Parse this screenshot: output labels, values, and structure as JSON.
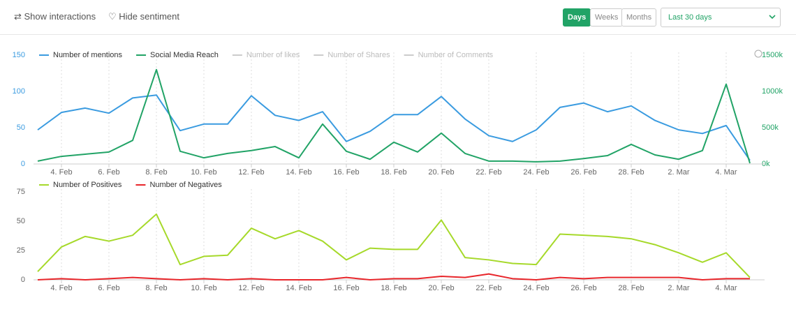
{
  "toolbar": {
    "show_interactions": "Show interactions",
    "hide_sentiment": "Hide sentiment",
    "periods": [
      "Days",
      "Weeks",
      "Months"
    ],
    "active_period": 0,
    "range_select": "Last 30 days"
  },
  "chart_data": [
    {
      "type": "line",
      "categories": [
        null,
        "4. Feb",
        null,
        "6. Feb",
        null,
        "8. Feb",
        null,
        "10. Feb",
        null,
        "12. Feb",
        null,
        "14. Feb",
        null,
        "16. Feb",
        null,
        "18. Feb",
        null,
        "20. Feb",
        null,
        "22. Feb",
        null,
        "24. Feb",
        null,
        "26. Feb",
        null,
        "28. Feb",
        null,
        "2. Mar",
        null,
        "4. Mar",
        null
      ],
      "series": [
        {
          "name": "Number of mentions",
          "color": "#3a9be0",
          "values": [
            47,
            71,
            77,
            70,
            91,
            95,
            46,
            55,
            55,
            94,
            67,
            60,
            72,
            31,
            45,
            68,
            68,
            93,
            62,
            39,
            31,
            47,
            78,
            84,
            72,
            80,
            60,
            47,
            42,
            53,
            5
          ]
        },
        {
          "name": "Social Media Reach",
          "color": "#21a366",
          "axis": "y2",
          "values": [
            40000,
            105000,
            135000,
            165000,
            325000,
            1300000,
            175000,
            85000,
            145000,
            185000,
            240000,
            85000,
            550000,
            175000,
            65000,
            300000,
            165000,
            425000,
            145000,
            40000,
            40000,
            30000,
            40000,
            75000,
            115000,
            270000,
            125000,
            65000,
            185000,
            1100000,
            10000
          ]
        }
      ],
      "inactive_series": [
        "Number of likes",
        "Number of Shares",
        "Number of Comments"
      ],
      "ylim": [
        0,
        150
      ],
      "yticks": [
        0,
        50,
        100,
        150
      ],
      "y2lim": [
        0,
        1500000
      ],
      "y2ticks": [
        {
          "value": 0,
          "label": "0k"
        },
        {
          "value": 500000,
          "label": "500k"
        },
        {
          "value": 1000000,
          "label": "1000k"
        },
        {
          "value": 1500000,
          "label": "1500k"
        }
      ],
      "grid": "x"
    },
    {
      "type": "line",
      "categories": [
        null,
        "4. Feb",
        null,
        "6. Feb",
        null,
        "8. Feb",
        null,
        "10. Feb",
        null,
        "12. Feb",
        null,
        "14. Feb",
        null,
        "16. Feb",
        null,
        "18. Feb",
        null,
        "20. Feb",
        null,
        "22. Feb",
        null,
        "24. Feb",
        null,
        "26. Feb",
        null,
        "28. Feb",
        null,
        "2. Mar",
        null,
        "4. Mar",
        null
      ],
      "series": [
        {
          "name": "Number of Positives",
          "color": "#a6d92a",
          "values": [
            7,
            28,
            37,
            33,
            38,
            56,
            13,
            20,
            21,
            44,
            35,
            42,
            33,
            17,
            27,
            26,
            26,
            51,
            19,
            17,
            14,
            13,
            39,
            38,
            37,
            35,
            30,
            23,
            15,
            23,
            2
          ]
        },
        {
          "name": "Number of Negatives",
          "color": "#e8262b",
          "values": [
            0,
            1,
            0,
            1,
            2,
            1,
            0,
            1,
            0,
            1,
            0,
            0,
            0,
            2,
            0,
            1,
            1,
            3,
            2,
            5,
            1,
            0,
            2,
            1,
            2,
            2,
            2,
            2,
            0,
            1,
            1
          ]
        }
      ],
      "ylim": [
        0,
        75
      ],
      "yticks": [
        0,
        25,
        50,
        75
      ],
      "grid": "x"
    }
  ]
}
